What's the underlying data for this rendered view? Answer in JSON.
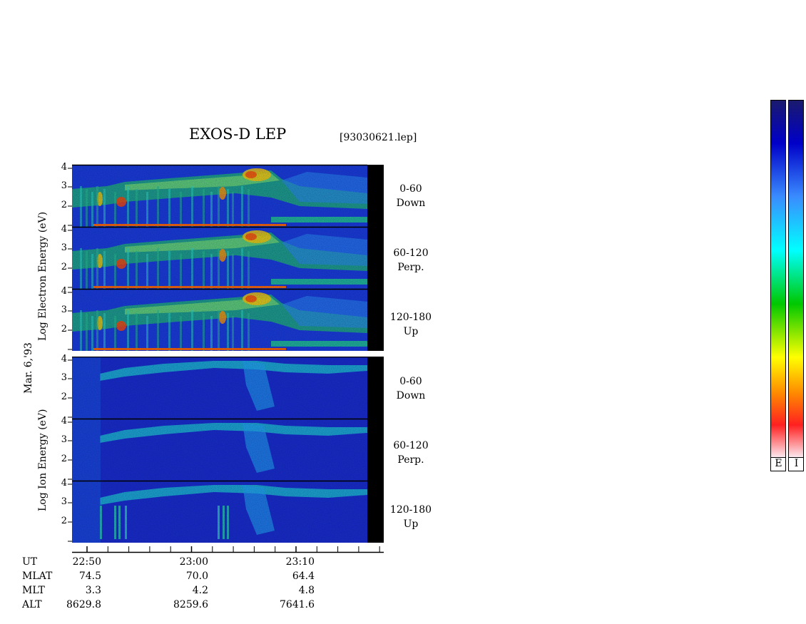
{
  "header": {
    "title": "EXOS-D LEP",
    "filename": "[93030621.lep]"
  },
  "axis_labels": {
    "electron": "Log  Electron  Energy (eV)",
    "ion": "Log  Ion  Energy (eV)",
    "date": "Mar. 6,'93"
  },
  "y_ticks": [
    "4",
    "3",
    "2"
  ],
  "panels": [
    {
      "angle": "0-60",
      "dir": "Down",
      "species": "electron"
    },
    {
      "angle": "60-120",
      "dir": "Perp.",
      "species": "electron"
    },
    {
      "angle": "120-180",
      "dir": "Up",
      "species": "electron"
    },
    {
      "angle": "0-60",
      "dir": "Down",
      "species": "ion"
    },
    {
      "angle": "60-120",
      "dir": "Perp.",
      "species": "ion"
    },
    {
      "angle": "120-180",
      "dir": "Up",
      "species": "ion"
    }
  ],
  "footer": {
    "row_labels": [
      "UT",
      "MLAT",
      "MLT",
      "ALT"
    ],
    "columns": [
      {
        "UT": "22:50",
        "MLAT": "74.5",
        "MLT": "3.3",
        "ALT": "8629.8"
      },
      {
        "UT": "23:00",
        "MLAT": "70.0",
        "MLT": "4.2",
        "ALT": "8259.6"
      },
      {
        "UT": "23:10",
        "MLAT": "64.4",
        "MLT": "4.8",
        "ALT": "7641.6"
      }
    ]
  },
  "colorbar": {
    "labels": [
      "E",
      "I"
    ],
    "colors": [
      "#fbe8ee",
      "#ff2020",
      "#ff8a00",
      "#ffff00",
      "#00c800",
      "#00ffff",
      "#3a8cff",
      "#0000c8",
      "#1a1a6e"
    ]
  },
  "chart_data": {
    "type": "heatmap",
    "title": "EXOS-D LEP",
    "x_ticks": [
      "22:50",
      "23:00",
      "23:10"
    ],
    "y_range": [
      1,
      4
    ],
    "y_ticks": [
      2,
      3,
      4
    ],
    "ylabel_electron": "Log  Electron  Energy (eV)",
    "ylabel_ion": "Log  Ion  Energy (eV)",
    "panels": [
      "0-60 Down",
      "60-120 Perp.",
      "120-180 Up",
      "0-60 Down",
      "60-120 Perp.",
      "120-180 Up"
    ]
  }
}
